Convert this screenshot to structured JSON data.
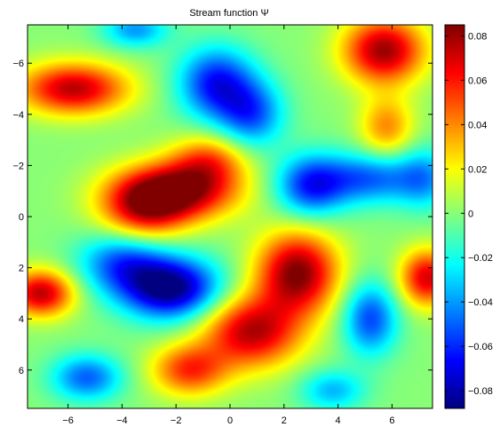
{
  "chart_data": {
    "type": "heatmap",
    "title": "Stream function Ψ",
    "xlabel": "",
    "ylabel": "",
    "xlim": [
      -7.5,
      7.5
    ],
    "ylim": [
      -7.5,
      7.5
    ],
    "y_direction": "reversed",
    "x_ticks": [
      -6,
      -4,
      -2,
      0,
      2,
      4,
      6
    ],
    "y_ticks": [
      -6,
      -4,
      -2,
      0,
      2,
      4,
      6
    ],
    "x_tick_labels": [
      "−6",
      "−4",
      "−2",
      "0",
      "2",
      "4",
      "6"
    ],
    "y_tick_labels": [
      "−6",
      "−4",
      "−2",
      "0",
      "2",
      "4",
      "6"
    ],
    "colormap": "jet",
    "colorbar": {
      "range": [
        -0.088,
        0.085
      ],
      "ticks": [
        -0.08,
        -0.06,
        -0.04,
        -0.02,
        0,
        0.02,
        0.04,
        0.06,
        0.08
      ],
      "tick_labels": [
        "−0.08",
        "−0.06",
        "−0.04",
        "−0.02",
        "0",
        "0.02",
        "0.04",
        "0.06",
        "0.08"
      ]
    },
    "grid": false,
    "features": [
      {
        "label": "max",
        "x": -2.0,
        "y": -1.0,
        "value": 0.085,
        "sx": 2.2,
        "sy": 1.1
      },
      {
        "label": "max",
        "x": -3.2,
        "y": -0.2,
        "value": 0.055,
        "sx": 1.6,
        "sy": 1.2
      },
      {
        "label": "max",
        "x": -0.8,
        "y": -2.2,
        "value": 0.045,
        "sx": 1.4,
        "sy": 1.0
      },
      {
        "label": "max",
        "x": -5.8,
        "y": -5.0,
        "value": 0.075,
        "sx": 2.0,
        "sy": 1.0
      },
      {
        "label": "max",
        "x": 2.5,
        "y": 2.2,
        "value": 0.085,
        "sx": 1.5,
        "sy": 1.6
      },
      {
        "label": "max",
        "x": 0.8,
        "y": 4.5,
        "value": 0.075,
        "sx": 1.8,
        "sy": 1.4
      },
      {
        "label": "max",
        "x": -1.5,
        "y": 6.0,
        "value": 0.055,
        "sx": 1.4,
        "sy": 1.0
      },
      {
        "label": "max",
        "x": 5.7,
        "y": -6.5,
        "value": 0.08,
        "sx": 1.5,
        "sy": 1.3
      },
      {
        "label": "max",
        "x": -7.0,
        "y": 3.0,
        "value": 0.075,
        "sx": 1.2,
        "sy": 0.9
      },
      {
        "label": "max",
        "x": 7.3,
        "y": 2.4,
        "value": 0.07,
        "sx": 1.0,
        "sy": 1.1
      },
      {
        "label": "max",
        "x": 5.8,
        "y": -3.5,
        "value": 0.04,
        "sx": 1.0,
        "sy": 1.2
      },
      {
        "label": "min",
        "x": -2.2,
        "y": 2.8,
        "value": -0.09,
        "sx": 1.8,
        "sy": 1.2
      },
      {
        "label": "min",
        "x": -4.0,
        "y": 1.8,
        "value": -0.05,
        "sx": 1.6,
        "sy": 1.2
      },
      {
        "label": "min",
        "x": -0.5,
        "y": -5.2,
        "value": -0.065,
        "sx": 1.4,
        "sy": 1.4
      },
      {
        "label": "min",
        "x": 0.8,
        "y": -4.0,
        "value": -0.05,
        "sx": 1.2,
        "sy": 1.3
      },
      {
        "label": "min",
        "x": 3.0,
        "y": -1.2,
        "value": -0.06,
        "sx": 1.3,
        "sy": 1.2
      },
      {
        "label": "min",
        "x": 5.2,
        "y": -1.5,
        "value": -0.05,
        "sx": 1.8,
        "sy": 1.0
      },
      {
        "label": "min",
        "x": 5.2,
        "y": 4.0,
        "value": -0.055,
        "sx": 1.0,
        "sy": 1.4
      },
      {
        "label": "min",
        "x": -5.3,
        "y": 6.3,
        "value": -0.05,
        "sx": 1.3,
        "sy": 0.9
      },
      {
        "label": "min",
        "x": -3.5,
        "y": -7.3,
        "value": -0.04,
        "sx": 1.2,
        "sy": 0.7
      },
      {
        "label": "min",
        "x": 7.2,
        "y": -1.5,
        "value": -0.035,
        "sx": 1.0,
        "sy": 1.2
      },
      {
        "label": "min",
        "x": 3.8,
        "y": 6.8,
        "value": -0.035,
        "sx": 1.2,
        "sy": 0.8
      }
    ]
  }
}
